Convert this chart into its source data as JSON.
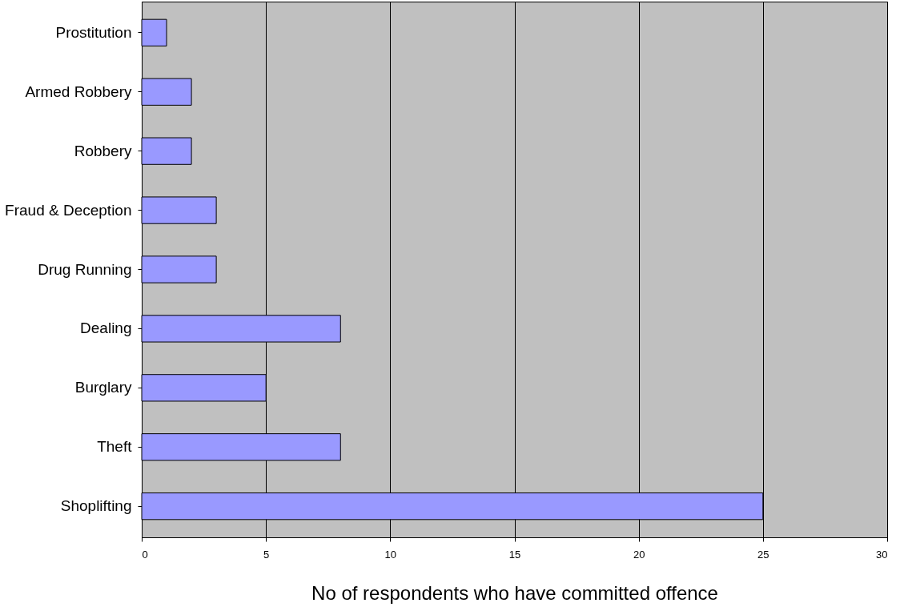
{
  "chart_data": {
    "type": "bar",
    "orientation": "horizontal",
    "xlabel": "No of respondents who have committed offence",
    "categories": [
      "Prostitution",
      "Armed Robbery",
      "Robbery",
      "Fraud & Deception",
      "Drug Running",
      "Dealing",
      "Burglary",
      "Theft",
      "Shoplifting"
    ],
    "values": [
      1,
      2,
      2,
      3,
      3,
      8,
      5,
      8,
      25
    ],
    "color": "#9999ff",
    "xlim": [
      0,
      30
    ],
    "xticks": [
      0,
      5,
      10,
      15,
      20,
      25,
      30
    ],
    "grid": "x"
  }
}
